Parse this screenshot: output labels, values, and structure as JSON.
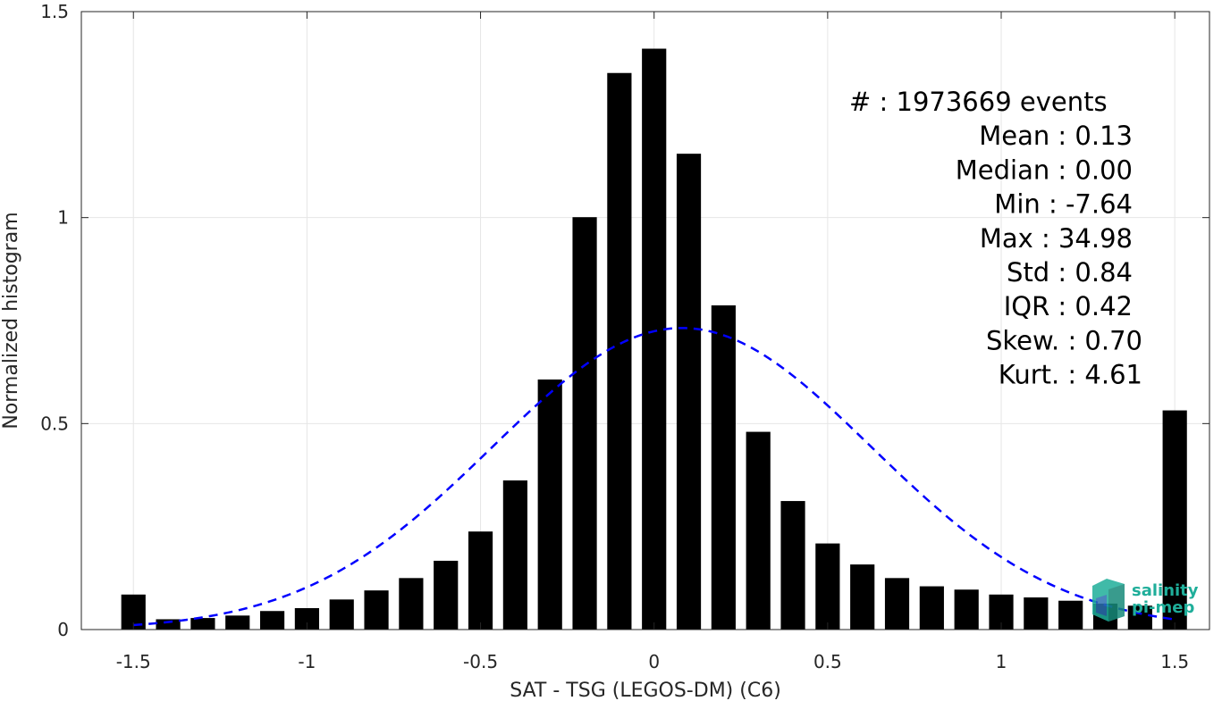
{
  "chart_data": {
    "type": "bar",
    "xlabel": "SAT - TSG (LEGOS-DM) (C6)",
    "ylabel": "Normalized histogram",
    "xlim": [
      -1.65,
      1.6
    ],
    "ylim": [
      0,
      1.5
    ],
    "xticks": [
      -1.5,
      -1,
      -0.5,
      0,
      0.5,
      1,
      1.5
    ],
    "xtick_labels": [
      "-1.5",
      "-1",
      "-0.5",
      "0",
      "0.5",
      "1",
      "1.5"
    ],
    "yticks": [
      0,
      0.5,
      1,
      1.5
    ],
    "ytick_labels": [
      "0",
      "0.5",
      "1",
      "1.5"
    ],
    "grid": true,
    "bar_width": 0.07,
    "x": [
      -1.5,
      -1.4,
      -1.3,
      -1.2,
      -1.1,
      -1.0,
      -0.9,
      -0.8,
      -0.7,
      -0.6,
      -0.5,
      -0.4,
      -0.3,
      -0.2,
      -0.1,
      0.0,
      0.1,
      0.2,
      0.3,
      0.4,
      0.5,
      0.6,
      0.7,
      0.8,
      0.9,
      1.0,
      1.1,
      1.2,
      1.3,
      1.4,
      1.5
    ],
    "values": [
      0.085,
      0.025,
      0.028,
      0.034,
      0.045,
      0.052,
      0.073,
      0.095,
      0.125,
      0.167,
      0.238,
      0.362,
      0.607,
      1.001,
      1.351,
      1.41,
      1.155,
      0.787,
      0.48,
      0.312,
      0.209,
      0.158,
      0.125,
      0.105,
      0.097,
      0.085,
      0.078,
      0.07,
      0.063,
      0.058,
      0.532
    ],
    "bar_color": "#000000",
    "fit": {
      "name": "",
      "style": "dashed",
      "color": "#0000ff",
      "mean": 0.08,
      "std": 0.545,
      "x_range": [
        -1.5,
        1.5
      ]
    },
    "stats_box": {
      "placement": "top-right",
      "lines": [
        {
          "left": "#",
          "right": ": 1973669 events"
        },
        {
          "left": "Mean",
          "right": ": 0.13"
        },
        {
          "left": "Median",
          "right": ": 0.00"
        },
        {
          "left": "Min",
          "right": ": -7.64"
        },
        {
          "left": "Max",
          "right": ": 34.98"
        },
        {
          "left": "Std",
          "right": ": 0.84"
        },
        {
          "left": "IQR",
          "right": ": 0.42"
        },
        {
          "left": "Skew.",
          "right": ": 0.70"
        },
        {
          "left": "Kurt.",
          "right": ": 4.61"
        }
      ]
    }
  },
  "logo": {
    "line1": "salinity",
    "line2": "pi-mep",
    "color": "#1fae9a"
  }
}
